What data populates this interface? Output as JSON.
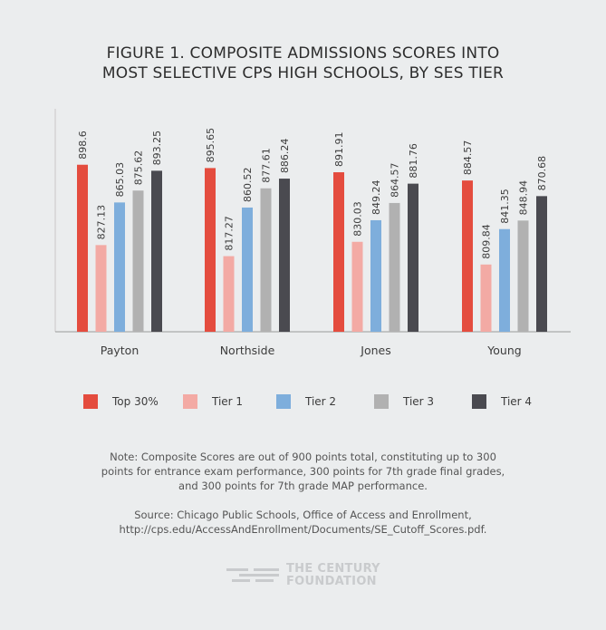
{
  "title": {
    "line1": "FIGURE 1. COMPOSITE ADMISSIONS SCORES INTO",
    "line2": "MOST SELECTIVE CPS HIGH SCHOOLS, BY SES TIER"
  },
  "chart_data": {
    "type": "bar",
    "categories": [
      "Payton",
      "Northside",
      "Jones",
      "Young"
    ],
    "series": [
      {
        "name": "Top 30%",
        "color": "#e44c3e",
        "values": [
          898.6,
          895.65,
          891.91,
          884.57
        ],
        "labels": [
          "898.6",
          "895.65",
          "891.91",
          "884.57"
        ]
      },
      {
        "name": "Tier 1",
        "color": "#f3aaa4",
        "values": [
          827.13,
          817.27,
          830.03,
          809.84
        ],
        "labels": [
          "827.13",
          "817.27",
          "830.03",
          "809.84"
        ]
      },
      {
        "name": "Tier 2",
        "color": "#7eaedc",
        "values": [
          865.03,
          860.52,
          849.24,
          841.35
        ],
        "labels": [
          "865.03",
          "860.52",
          "849.24",
          "841.35"
        ]
      },
      {
        "name": "Tier 3",
        "color": "#b1b1b1",
        "values": [
          875.62,
          877.61,
          864.57,
          848.94
        ],
        "labels": [
          "875.62",
          "877.61",
          "864.57",
          "848.94"
        ]
      },
      {
        "name": "Tier 4",
        "color": "#4a4a50",
        "values": [
          893.25,
          886.24,
          881.76,
          870.68
        ],
        "labels": [
          "893.25",
          "886.24",
          "881.76",
          "870.68"
        ]
      }
    ],
    "ylim": [
      750,
      900
    ],
    "grid": false,
    "legend_position": "bottom"
  },
  "note": {
    "line1": "Note: Composite Scores are out of 900 points total, constituting up to 300",
    "line2": "points for entrance exam performance, 300 points for 7th grade final grades,",
    "line3": "and 300 points for 7th grade MAP performance."
  },
  "source": {
    "line1": "Source: Chicago Public Schools, Office of Access and Enrollment,",
    "line2": "http://cps.edu/AccessAndEnrollment/Documents/SE_Cutoff_Scores.pdf."
  },
  "logo": {
    "line1": "THE CENTURY",
    "line2": "FOUNDATION"
  }
}
